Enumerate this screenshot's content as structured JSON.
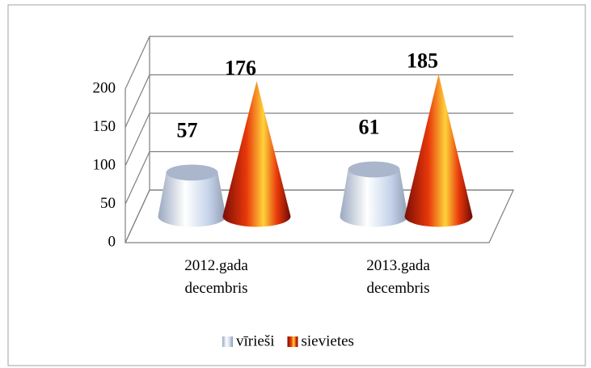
{
  "chart_data": {
    "type": "bar",
    "categories": [
      "2012.gada decembris",
      "2013.gada decembris"
    ],
    "series": [
      {
        "name": "vīrieši",
        "color": "#c5d3ea",
        "values": [
          57,
          61
        ]
      },
      {
        "name": "sievietes",
        "color": "#e8380a",
        "values": [
          176,
          185
        ]
      }
    ],
    "ylim": [
      0,
      200
    ],
    "yticks": [
      0,
      50,
      100,
      150,
      200
    ],
    "grid": true,
    "legend": "bottom"
  }
}
